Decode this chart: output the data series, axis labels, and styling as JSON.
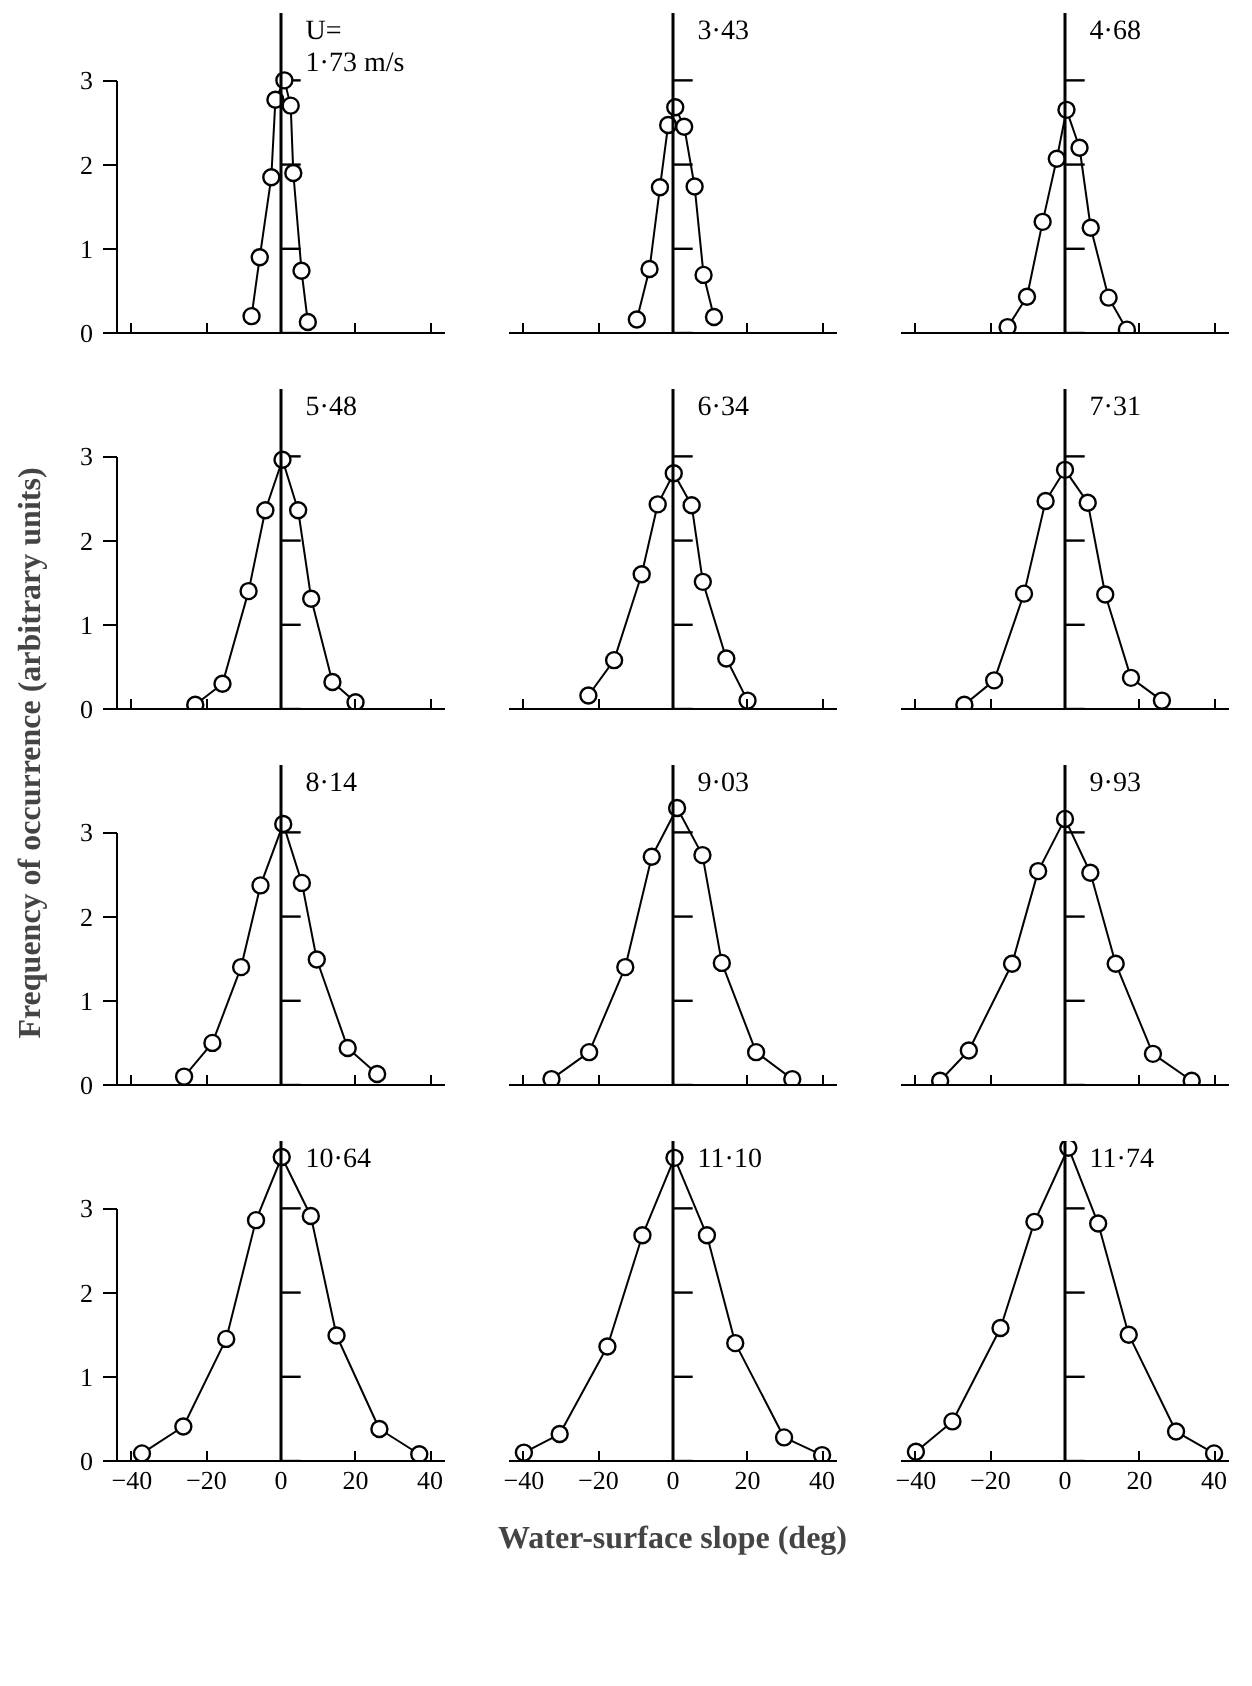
{
  "chart_data": [
    {
      "type": "line",
      "marker": "circle",
      "color": "#000000",
      "x": [
        -7.9,
        -5.7,
        -2.6,
        -1.5,
        0.9,
        2.6,
        3.3,
        5.5,
        7.2
      ],
      "values": [
        0.2,
        0.9,
        1.85,
        2.77,
        3.0,
        2.7,
        1.9,
        0.74,
        0.13
      ],
      "xlim": [
        -44,
        44
      ],
      "xticks": [
        -40,
        -20,
        0,
        20,
        40
      ],
      "ylim": [
        0,
        3.8
      ],
      "yticks": [
        0,
        1,
        2,
        3
      ],
      "ref_lines": [
        {
          "axis": "x",
          "value": 0
        }
      ],
      "annotations": [
        "U=",
        "1·73 m/s"
      ],
      "tick_labels": "y",
      "ylabel": "Frequency of occurrence (arbitrary units)"
    },
    {
      "type": "line",
      "marker": "circle",
      "color": "#000000",
      "x": [
        -9.7,
        -6.3,
        -3.5,
        -1.3,
        0.6,
        3.0,
        5.8,
        8.2,
        11
      ],
      "values": [
        0.16,
        0.76,
        1.73,
        2.47,
        2.68,
        2.45,
        1.74,
        0.69,
        0.19
      ],
      "xlim": [
        -44,
        44
      ],
      "xticks": [
        -40,
        -20,
        0,
        20,
        40
      ],
      "ylim": [
        0,
        3.8
      ],
      "yticks": [
        0,
        1,
        2,
        3
      ],
      "ref_lines": [
        {
          "axis": "x",
          "value": 0
        }
      ],
      "annotations": [
        "3·43"
      ],
      "tick_labels": false
    },
    {
      "type": "line",
      "marker": "circle",
      "color": "#000000",
      "x": [
        -15.4,
        -10.2,
        -6,
        -2.2,
        0.4,
        3.9,
        6.9,
        11.7,
        16.6
      ],
      "values": [
        0.07,
        0.43,
        1.32,
        2.07,
        2.65,
        2.2,
        1.25,
        0.42,
        0.04
      ],
      "xlim": [
        -44,
        44
      ],
      "xticks": [
        -40,
        -20,
        0,
        20,
        40
      ],
      "ylim": [
        0,
        3.8
      ],
      "yticks": [
        0,
        1,
        2,
        3
      ],
      "ref_lines": [
        {
          "axis": "x",
          "value": 0
        }
      ],
      "annotations": [
        "4·68"
      ],
      "tick_labels": false
    },
    {
      "type": "line",
      "marker": "circle",
      "color": "#000000",
      "x": [
        -23,
        -15.7,
        -8.7,
        -4.2,
        0.4,
        4.6,
        8.1,
        13.8,
        20
      ],
      "values": [
        0.05,
        0.3,
        1.4,
        2.36,
        2.96,
        2.36,
        1.31,
        0.32,
        0.08
      ],
      "xlim": [
        -44,
        44
      ],
      "xticks": [
        -40,
        -20,
        0,
        20,
        40
      ],
      "ylim": [
        0,
        3.8
      ],
      "yticks": [
        0,
        1,
        2,
        3
      ],
      "ref_lines": [
        {
          "axis": "x",
          "value": 0
        }
      ],
      "annotations": [
        "5·48"
      ],
      "tick_labels": "y"
    },
    {
      "type": "line",
      "marker": "circle",
      "color": "#000000",
      "x": [
        -22.7,
        -15.8,
        -8.4,
        -4.1,
        0.2,
        5,
        8,
        14.3,
        20
      ],
      "values": [
        0.16,
        0.58,
        1.6,
        2.43,
        2.8,
        2.42,
        1.51,
        0.6,
        0.1
      ],
      "xlim": [
        -44,
        44
      ],
      "xticks": [
        -40,
        -20,
        0,
        20,
        40
      ],
      "ylim": [
        0,
        3.8
      ],
      "yticks": [
        0,
        1,
        2,
        3
      ],
      "ref_lines": [
        {
          "axis": "x",
          "value": 0
        }
      ],
      "annotations": [
        "6·34"
      ],
      "tick_labels": false
    },
    {
      "type": "line",
      "marker": "circle",
      "color": "#000000",
      "x": [
        -27,
        -19,
        -11,
        -5.2,
        0,
        6.1,
        10.8,
        17.7,
        26
      ],
      "values": [
        0.05,
        0.34,
        1.37,
        2.47,
        2.84,
        2.45,
        1.36,
        0.37,
        0.1
      ],
      "xlim": [
        -44,
        44
      ],
      "xticks": [
        -40,
        -20,
        0,
        20,
        40
      ],
      "ylim": [
        0,
        3.8
      ],
      "yticks": [
        0,
        1,
        2,
        3
      ],
      "ref_lines": [
        {
          "axis": "x",
          "value": 0
        }
      ],
      "annotations": [
        "7·31"
      ],
      "tick_labels": false
    },
    {
      "type": "line",
      "marker": "circle",
      "color": "#000000",
      "x": [
        -26,
        -18.4,
        -10.7,
        -5.5,
        0.6,
        5.6,
        9.6,
        17.9,
        25.8
      ],
      "values": [
        0.1,
        0.5,
        1.4,
        2.37,
        3.1,
        2.4,
        1.49,
        0.44,
        0.13
      ],
      "xlim": [
        -44,
        44
      ],
      "xticks": [
        -40,
        -20,
        0,
        20,
        40
      ],
      "ylim": [
        0,
        3.8
      ],
      "yticks": [
        0,
        1,
        2,
        3
      ],
      "ref_lines": [
        {
          "axis": "x",
          "value": 0
        }
      ],
      "annotations": [
        "8·14"
      ],
      "tick_labels": "y"
    },
    {
      "type": "line",
      "marker": "circle",
      "color": "#000000",
      "x": [
        -32.6,
        -22.5,
        -12.8,
        -5.7,
        1.1,
        7.9,
        13.1,
        22.3,
        32
      ],
      "values": [
        0.07,
        0.39,
        1.4,
        2.71,
        3.29,
        2.73,
        1.45,
        0.39,
        0.07
      ],
      "xlim": [
        -44,
        44
      ],
      "xticks": [
        -40,
        -20,
        0,
        20,
        40
      ],
      "ylim": [
        0,
        3.8
      ],
      "yticks": [
        0,
        1,
        2,
        3
      ],
      "ref_lines": [
        {
          "axis": "x",
          "value": 0
        }
      ],
      "annotations": [
        "9·03"
      ],
      "tick_labels": false
    },
    {
      "type": "line",
      "marker": "circle",
      "color": "#000000",
      "x": [
        -33.5,
        -25.8,
        -14.2,
        -7.2,
        0,
        6.8,
        13.6,
        23.6,
        34
      ],
      "values": [
        0.05,
        0.41,
        1.44,
        2.54,
        3.16,
        2.52,
        1.44,
        0.37,
        0.05
      ],
      "xlim": [
        -44,
        44
      ],
      "xticks": [
        -40,
        -20,
        0,
        20,
        40
      ],
      "ylim": [
        0,
        3.8
      ],
      "yticks": [
        0,
        1,
        2,
        3
      ],
      "ref_lines": [
        {
          "axis": "x",
          "value": 0
        }
      ],
      "annotations": [
        "9·93"
      ],
      "tick_labels": false
    },
    {
      "type": "line",
      "marker": "circle",
      "color": "#000000",
      "x": [
        -37.3,
        -26.2,
        -14.7,
        -6.7,
        0.2,
        8,
        14.9,
        26.4,
        37.1
      ],
      "values": [
        0.09,
        0.41,
        1.45,
        2.86,
        3.61,
        2.91,
        1.49,
        0.38,
        0.08
      ],
      "xlim": [
        -44,
        44
      ],
      "xticks": [
        -40,
        -20,
        0,
        20,
        40
      ],
      "ylim": [
        0,
        3.8
      ],
      "yticks": [
        0,
        1,
        2,
        3
      ],
      "ref_lines": [
        {
          "axis": "x",
          "value": 0
        }
      ],
      "annotations": [
        "10·64"
      ]
    },
    {
      "type": "line",
      "marker": "circle",
      "color": "#000000",
      "x": [
        -40,
        -30.4,
        -17.6,
        -8.2,
        0.4,
        9.1,
        16.7,
        29.8,
        40
      ],
      "values": [
        0.1,
        0.32,
        1.36,
        2.68,
        3.6,
        2.68,
        1.4,
        0.28,
        0.07
      ],
      "xlim": [
        -44,
        44
      ],
      "xticks": [
        -40,
        -20,
        0,
        20,
        40
      ],
      "ylim": [
        0,
        3.8
      ],
      "yticks": [
        0,
        1,
        2,
        3
      ],
      "ref_lines": [
        {
          "axis": "x",
          "value": 0
        }
      ],
      "annotations": [
        "11·10"
      ],
      "tick_labels": "x",
      "xlabel": "Water-surface slope (deg)"
    },
    {
      "type": "line",
      "marker": "circle",
      "color": "#000000",
      "x": [
        -40,
        -30.2,
        -17.3,
        -8.2,
        0.9,
        8.9,
        17.1,
        29.8,
        40
      ],
      "values": [
        0.11,
        0.47,
        1.58,
        2.84,
        3.72,
        2.82,
        1.5,
        0.35,
        0.09
      ],
      "xlim": [
        -44,
        44
      ],
      "xticks": [
        -40,
        -20,
        0,
        20,
        40
      ],
      "ylim": [
        0,
        3.8
      ],
      "yticks": [
        0,
        1,
        2,
        3
      ],
      "ref_lines": [
        {
          "axis": "x",
          "value": 0
        }
      ],
      "annotations": [
        "11·74"
      ],
      "tick_labels": "x"
    }
  ]
}
